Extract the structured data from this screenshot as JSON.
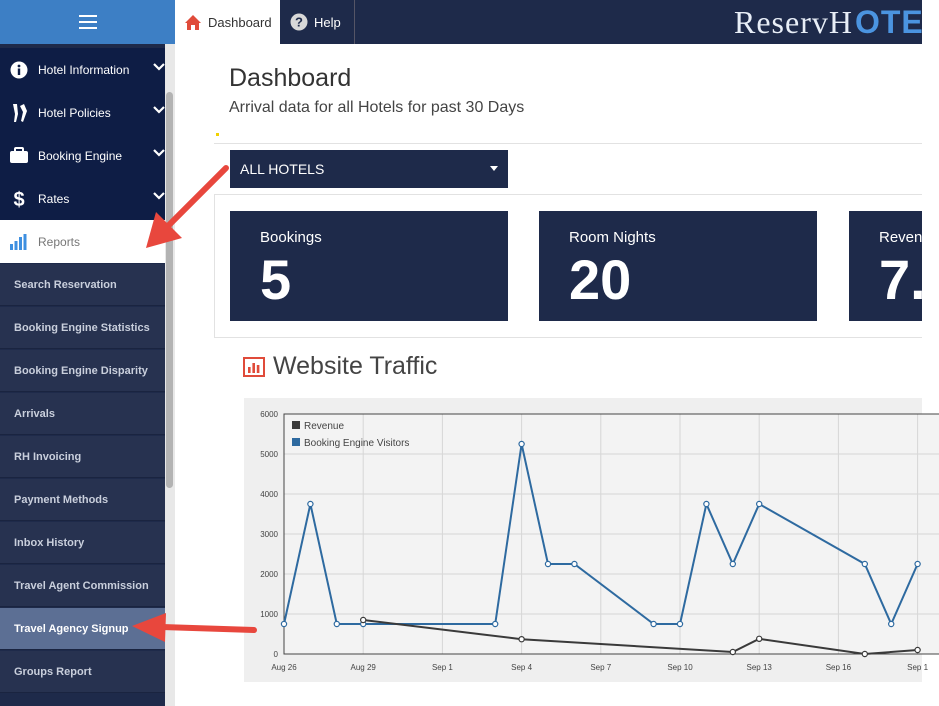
{
  "topbar": {
    "tabs": [
      {
        "label": "Dashboard",
        "icon": "home-icon"
      },
      {
        "label": "Help",
        "icon": "help-icon"
      }
    ],
    "logo": {
      "part1": "ReservHOTE",
      "p1a": "ReservH",
      "p1b": "OTE",
      "brand_blue": "#4b94e0"
    }
  },
  "sidebar": {
    "main_items": [
      {
        "label": "Hotel Information",
        "icon": "info-icon"
      },
      {
        "label": "Hotel Policies",
        "icon": "policies-icon"
      },
      {
        "label": "Booking Engine",
        "icon": "briefcase-icon"
      },
      {
        "label": "Rates",
        "icon": "dollar-icon"
      },
      {
        "label": "Reports",
        "icon": "bar-chart-icon"
      }
    ],
    "sub_items": [
      "Search Reservation",
      "Booking Engine Statistics",
      "Booking Engine Disparity",
      "Arrivals",
      "RH Invoicing",
      "Payment Methods",
      "Inbox History",
      "Travel Agent Commission",
      "Travel Agency Signup",
      "Groups Report"
    ],
    "selected_sub_item": "Travel Agency Signup"
  },
  "main": {
    "title": "Dashboard",
    "subtitle": "Arrival data for all Hotels for past 30 Days",
    "hotel_select": "ALL HOTELS",
    "stats": [
      {
        "label": "Bookings",
        "value": "5"
      },
      {
        "label": "Room Nights",
        "value": "20"
      },
      {
        "label": "Revenue",
        "value": "7."
      }
    ],
    "traffic_title": "Website Traffic"
  },
  "colors": {
    "navy": "#1e2a4a",
    "accent_blue": "#3d7fc5",
    "arrow_red": "#e8473d"
  },
  "chart_data": {
    "type": "line",
    "x": [
      "Aug 26",
      "Aug 27",
      "Aug 28",
      "Aug 29",
      "Aug 30",
      "Aug 31",
      "Sep 1",
      "Sep 2",
      "Sep 3",
      "Sep 4",
      "Sep 5",
      "Sep 6",
      "Sep 7",
      "Sep 8",
      "Sep 9",
      "Sep 10",
      "Sep 11",
      "Sep 12",
      "Sep 13",
      "Sep 14",
      "Sep 15",
      "Sep 16",
      "Sep 17",
      "Sep 18",
      "Sep 19"
    ],
    "x_tick_labels": [
      "Aug 26",
      "Aug 29",
      "Sep 1",
      "Sep 4",
      "Sep 7",
      "Sep 10",
      "Sep 13",
      "Sep 16",
      "Sep 1"
    ],
    "y_tick_labels": [
      "0",
      "1000",
      "2000",
      "3000",
      "4000",
      "5000",
      "6000"
    ],
    "ylim": [
      0,
      6000
    ],
    "legend": [
      "Revenue",
      "Booking Engine Visitors"
    ],
    "legend_placement": "top-left",
    "grid": true,
    "series": [
      {
        "name": "Booking Engine Visitors",
        "color": "#2e6aa0",
        "points": [
          [
            "Aug 26",
            750
          ],
          [
            "Aug 27",
            3750
          ],
          [
            "Aug 28",
            750
          ],
          [
            "Aug 29",
            750
          ],
          [
            "Sep 3",
            750
          ],
          [
            "Sep 4",
            5250
          ],
          [
            "Sep 5",
            2250
          ],
          [
            "Sep 6",
            2250
          ],
          [
            "Sep 9",
            750
          ],
          [
            "Sep 10",
            750
          ],
          [
            "Sep 11",
            3750
          ],
          [
            "Sep 12",
            2250
          ],
          [
            "Sep 13",
            3750
          ],
          [
            "Sep 17",
            2250
          ],
          [
            "Sep 18",
            750
          ],
          [
            "Sep 19",
            2250
          ]
        ]
      },
      {
        "name": "Revenue",
        "color": "#3a3a3a",
        "points": [
          [
            "Aug 29",
            850
          ],
          [
            "Sep 4",
            370
          ],
          [
            "Sep 12",
            50
          ],
          [
            "Sep 13",
            380
          ],
          [
            "Sep 17",
            0
          ],
          [
            "Sep 19",
            100
          ]
        ]
      }
    ]
  }
}
